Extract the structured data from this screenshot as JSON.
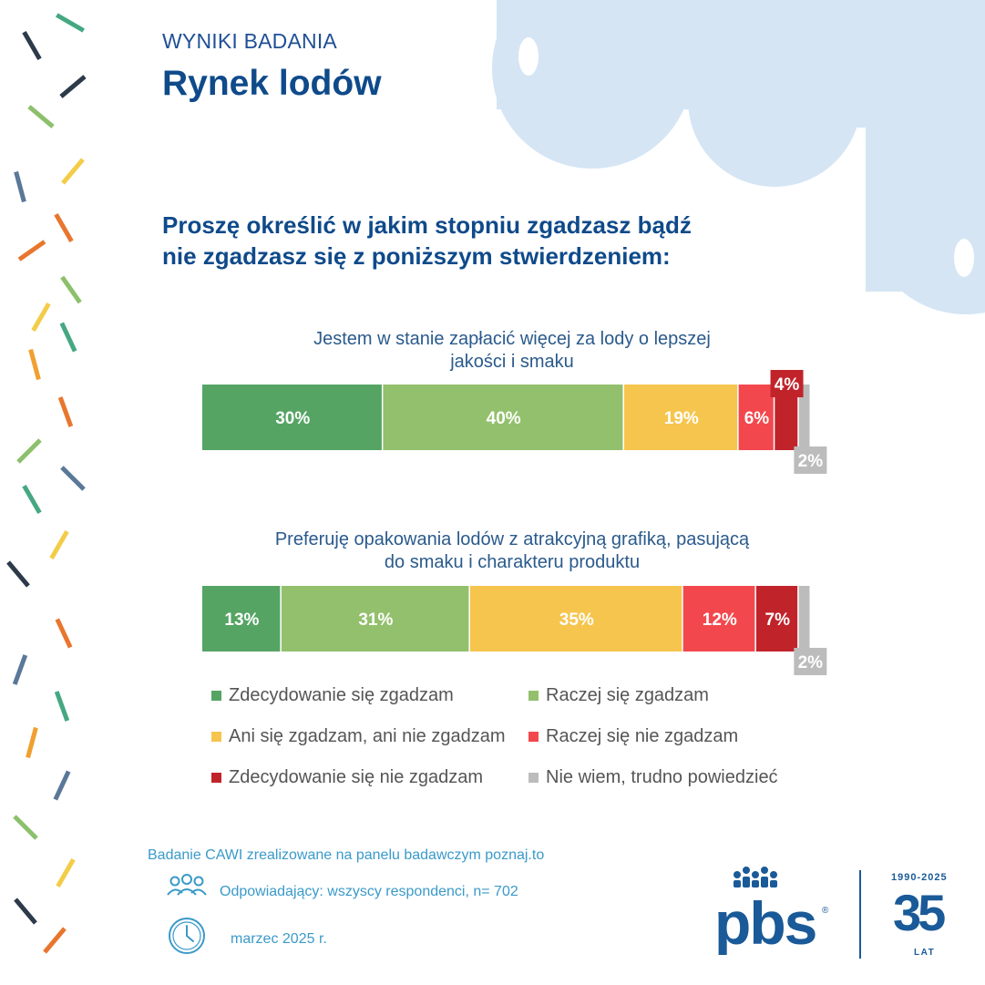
{
  "header": {
    "eyebrow": "WYNIKI BADANIA",
    "title": "Rynek lodów"
  },
  "question": {
    "line1": "Proszę określić w jakim stopniu zgadzasz bądź",
    "line2": "nie zgadzasz się z poniższym stwierdzeniem:"
  },
  "colors": {
    "strongly_agree": "#55a464",
    "agree": "#93c06c",
    "neutral": "#f6c54e",
    "disagree": "#f2484d",
    "strongly_disagree": "#c1232b",
    "dont_know": "#bcbcbc",
    "brand_blue": "#0f4a8a",
    "cloud": "#d5e5f4"
  },
  "chart_data": {
    "type": "bar",
    "orientation": "horizontal",
    "stacked": true,
    "percent": true,
    "categories": [
      "Jestem w stanie zapłacić więcej za lody o lepszej jakości i smaku",
      "Preferuję opakowania lodów z atrakcyjną grafiką, pasującą do smaku i charakteru produktu"
    ],
    "category_lines": [
      [
        "Jestem w stanie zapłacić więcej za lody o lepszej",
        "jakości i smaku"
      ],
      [
        "Preferuję opakowania lodów z atrakcyjną grafiką, pasującą",
        "do smaku i charakteru produktu"
      ]
    ],
    "series": [
      {
        "name": "Zdecydowanie się zgadzam",
        "values": [
          30,
          13
        ],
        "labels": [
          "30%",
          "13%"
        ]
      },
      {
        "name": "Raczej się zgadzam",
        "values": [
          40,
          31
        ],
        "labels": [
          "40%",
          "31%"
        ]
      },
      {
        "name": "Ani się zgadzam, ani nie zgadzam",
        "values": [
          19,
          35
        ],
        "labels": [
          "19%",
          "35%"
        ]
      },
      {
        "name": "Raczej się nie zgadzam",
        "values": [
          6,
          12
        ],
        "labels": [
          "6%",
          "12%"
        ]
      },
      {
        "name": "Zdecydowanie się nie zgadzam",
        "values": [
          4,
          7
        ],
        "labels": [
          "4%",
          "7%"
        ]
      },
      {
        "name": "Nie wiem, trudno powiedzieć",
        "values": [
          2,
          2
        ],
        "labels": [
          "2%",
          "2%"
        ]
      }
    ],
    "legend_position": "bottom",
    "grid": false
  },
  "footer": {
    "note": "Badanie CAWI zrealizowane na panelu badawczym poznaj.to",
    "respondents": "Odpowiadający: wszyscy respondenci, n= 702",
    "date": "marzec 2025 r."
  },
  "logo": {
    "text": "pbs",
    "registered": "®",
    "years": "1990-2025",
    "anniversary": "35",
    "anniversary_unit": "LAT"
  }
}
